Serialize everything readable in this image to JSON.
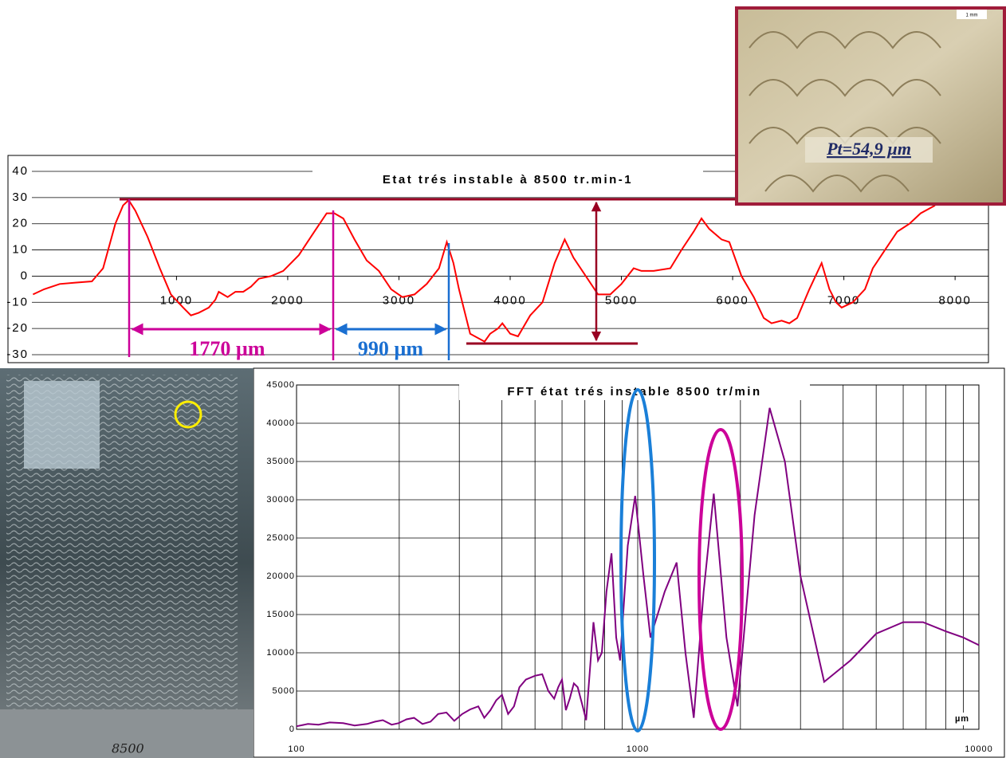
{
  "chart_data": [
    {
      "type": "line",
      "title": "Etat trés instable à 8500 tr.min-1",
      "color": "#ff0000",
      "x": [
        -290,
        -190,
        -50,
        90,
        240,
        340,
        450,
        520,
        570,
        630,
        740,
        850,
        950,
        1060,
        1130,
        1200,
        1290,
        1350,
        1380,
        1460,
        1530,
        1600,
        1670,
        1740,
        1850,
        1960,
        2100,
        2240,
        2350,
        2420,
        2500,
        2600,
        2710,
        2820,
        2930,
        3030,
        3140,
        3250,
        3360,
        3430,
        3490,
        3540,
        3640,
        3770,
        3820,
        3890,
        3930,
        4000,
        4070,
        4180,
        4290,
        4400,
        4490,
        4570,
        4680,
        4790,
        4900,
        5000,
        5110,
        5180,
        5290,
        5440,
        5540,
        5650,
        5720,
        5790,
        5900,
        5970,
        6080,
        6190,
        6280,
        6350,
        6440,
        6510,
        6580,
        6690,
        6800,
        6870,
        6930,
        6980,
        7080,
        7190,
        7260,
        7370,
        7480,
        7590,
        7690,
        7820
      ],
      "values": [
        -7,
        -5,
        -3,
        -2.5,
        -2,
        3,
        20,
        27,
        29,
        25,
        15,
        3,
        -7,
        -12,
        -15,
        -14,
        -12,
        -9,
        -6,
        -8,
        -6,
        -6,
        -4,
        -1,
        0,
        2,
        8,
        17,
        24,
        24,
        22,
        14,
        6,
        2,
        -5,
        -8,
        -7,
        -3,
        3,
        13,
        5,
        -5,
        -22,
        -25,
        -22,
        -20,
        -18,
        -22,
        -23,
        -15,
        -10,
        5,
        14,
        7,
        0,
        -7,
        -7,
        -3,
        3,
        2,
        2,
        3,
        10,
        17,
        22,
        18,
        14,
        13,
        0,
        -8,
        -16,
        -18,
        -17,
        -18,
        -16,
        -5,
        5,
        -5,
        -10,
        -12,
        -10,
        -5,
        3,
        10,
        17,
        20,
        24,
        27
      ],
      "xlim": [
        -300,
        8300
      ],
      "xticks": [
        1000,
        2000,
        3000,
        4000,
        5000,
        6000,
        7000,
        8000
      ],
      "ylim": [
        -30,
        40
      ],
      "yticks": [
        -30,
        -20,
        -10,
        0,
        10,
        20,
        30,
        40
      ],
      "grid": true,
      "annotations": [
        "1770 µm",
        "990 µm"
      ]
    },
    {
      "type": "line",
      "title": "FFT état trés instable 8500 tr/min",
      "color": "#800080",
      "log_x": true,
      "x_label": "µm",
      "x": [
        100,
        108,
        116,
        125,
        137,
        148,
        161,
        170,
        179,
        190,
        199,
        210,
        221,
        234,
        247,
        260,
        275,
        290,
        306,
        323,
        341,
        355,
        370,
        385,
        400,
        417,
        434,
        450,
        470,
        500,
        525,
        547,
        569,
        585,
        600,
        616,
        632,
        650,
        667,
        690,
        706,
        725,
        742,
        765,
        785,
        810,
        838,
        865,
        888,
        935,
        983,
        1040,
        1090,
        1200,
        1300,
        1380,
        1460,
        1560,
        1671,
        1820,
        1961,
        2200,
        2436,
        2700,
        3000,
        3520,
        4200,
        5000,
        6000,
        6860,
        8000,
        9000,
        10000
      ],
      "values": [
        400,
        700,
        600,
        900,
        800,
        500,
        700,
        1000,
        1200,
        600,
        800,
        1300,
        1500,
        700,
        1000,
        2000,
        2200,
        1100,
        2000,
        2600,
        3000,
        1500,
        2500,
        3800,
        4500,
        2000,
        3000,
        5500,
        6500,
        7000,
        7200,
        5000,
        4000,
        5500,
        6500,
        2500,
        4000,
        6000,
        5500,
        3000,
        1200,
        8000,
        14000,
        9000,
        10000,
        18000,
        23000,
        12000,
        9000,
        24000,
        30500,
        20000,
        12000,
        18000,
        21800,
        10000,
        1500,
        18000,
        30800,
        12000,
        3000,
        28000,
        42000,
        35000,
        20000,
        6200,
        9000,
        12500,
        14000,
        14000,
        12800,
        12000,
        11000
      ],
      "xlim": [
        100,
        10000
      ],
      "xticks": [
        100,
        1000,
        10000
      ],
      "ylim": [
        0,
        45000
      ],
      "yticks": [
        0,
        5000,
        10000,
        15000,
        20000,
        25000,
        30000,
        35000,
        40000,
        45000
      ],
      "grid": true
    }
  ],
  "photos": {
    "inset_caption": "Pt=54,9 µm",
    "scale_bar": "1 mm",
    "sample_label": "8500"
  }
}
